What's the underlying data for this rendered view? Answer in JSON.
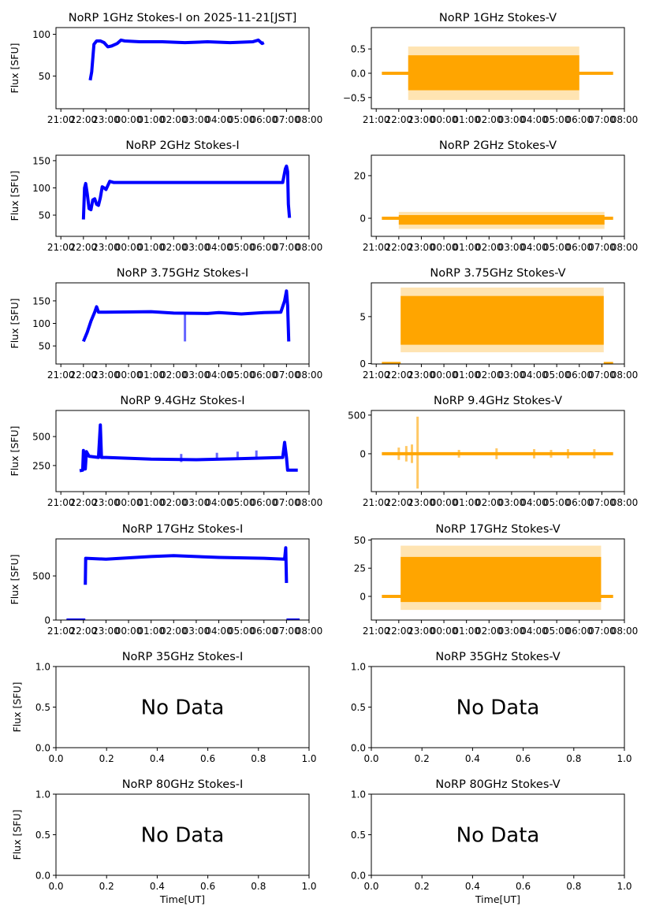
{
  "chart_data": [
    {
      "type": "scatter",
      "title": "NoRP 1GHz Stokes-I on 2025-11-21[JST]",
      "ylabel": "Flux [SFU]",
      "xlabel": "",
      "color": "#0000ff",
      "xlim": [
        "20:47",
        "08:00"
      ],
      "ylim": [
        11,
        108
      ],
      "xticks": [
        "21:00",
        "22:00",
        "23:00",
        "00:00",
        "01:00",
        "02:00",
        "03:00",
        "04:00",
        "05:00",
        "06:00",
        "07:00",
        "08:00"
      ],
      "yticks": [
        {
          "v": 50,
          "label": "50"
        },
        {
          "v": 100,
          "label": "100"
        }
      ],
      "lines": [
        [
          [
            "22:18",
            45
          ],
          [
            "22:22",
            55
          ],
          [
            "22:28",
            88
          ],
          [
            "22:35",
            92
          ],
          [
            "22:45",
            92
          ],
          [
            "22:55",
            90
          ],
          [
            "23:05",
            85
          ],
          [
            "23:15",
            86
          ],
          [
            "23:30",
            89
          ],
          [
            "23:40",
            93
          ],
          [
            "23:50",
            92
          ],
          [
            "00:30",
            91
          ],
          [
            "01:30",
            91
          ],
          [
            "02:30",
            90
          ],
          [
            "03:30",
            91
          ],
          [
            "04:30",
            90
          ],
          [
            "05:30",
            91
          ],
          [
            "05:45",
            93
          ],
          [
            "05:55",
            89
          ],
          [
            "06:00",
            90
          ]
        ]
      ],
      "bands": [],
      "spikes": []
    },
    {
      "type": "scatter",
      "title": "NoRP 1GHz Stokes-V",
      "ylabel": "",
      "xlabel": "",
      "color": "#ffa500",
      "xlim": [
        "20:47",
        "08:00"
      ],
      "ylim": [
        -0.73,
        0.94
      ],
      "xticks": [
        "21:00",
        "22:00",
        "23:00",
        "00:00",
        "01:00",
        "02:00",
        "03:00",
        "04:00",
        "05:00",
        "06:00",
        "07:00",
        "08:00"
      ],
      "yticks": [
        {
          "v": -0.5,
          "label": "−0.5"
        },
        {
          "v": 0,
          "label": "0.0"
        },
        {
          "v": 0.5,
          "label": "0.5"
        }
      ],
      "lines": [
        [
          [
            "21:15",
            0
          ],
          [
            "07:30",
            0
          ]
        ]
      ],
      "bands": [
        {
          "start": "22:25",
          "end": "06:00",
          "core": [
            -0.35,
            0.37
          ],
          "outer": [
            -0.55,
            0.55
          ]
        }
      ],
      "spikes": []
    },
    {
      "type": "scatter",
      "title": "NoRP 2GHz Stokes-I",
      "ylabel": "Flux [SFU]",
      "xlabel": "",
      "color": "#0000ff",
      "xlim": [
        "20:47",
        "08:00"
      ],
      "ylim": [
        11,
        160
      ],
      "xticks": [
        "21:00",
        "22:00",
        "23:00",
        "00:00",
        "01:00",
        "02:00",
        "03:00",
        "04:00",
        "05:00",
        "06:00",
        "07:00",
        "08:00"
      ],
      "yticks": [
        {
          "v": 50,
          "label": "50"
        },
        {
          "v": 100,
          "label": "100"
        },
        {
          "v": 150,
          "label": "150"
        }
      ],
      "lines": [
        [
          [
            "22:00",
            42
          ],
          [
            "22:03",
            100
          ],
          [
            "22:06",
            108
          ],
          [
            "22:10",
            90
          ],
          [
            "22:15",
            62
          ],
          [
            "22:20",
            60
          ],
          [
            "22:25",
            78
          ],
          [
            "22:30",
            80
          ],
          [
            "22:35",
            70
          ],
          [
            "22:40",
            68
          ],
          [
            "22:45",
            82
          ],
          [
            "22:50",
            102
          ],
          [
            "22:55",
            100
          ],
          [
            "23:00",
            97
          ],
          [
            "23:10",
            112
          ],
          [
            "23:20",
            110
          ],
          [
            "01:00",
            110
          ],
          [
            "03:00",
            110
          ],
          [
            "05:00",
            110
          ],
          [
            "06:50",
            110
          ],
          [
            "06:57",
            135
          ],
          [
            "07:00",
            140
          ],
          [
            "07:03",
            130
          ],
          [
            "07:05",
            70
          ],
          [
            "07:08",
            45
          ]
        ]
      ],
      "bands": [],
      "spikes": []
    },
    {
      "type": "scatter",
      "title": "NoRP 2GHz Stokes-V",
      "ylabel": "",
      "xlabel": "",
      "color": "#ffa500",
      "xlim": [
        "20:47",
        "08:00"
      ],
      "ylim": [
        -8.5,
        29.6
      ],
      "xticks": [
        "21:00",
        "22:00",
        "23:00",
        "00:00",
        "01:00",
        "02:00",
        "03:00",
        "04:00",
        "05:00",
        "06:00",
        "07:00",
        "08:00"
      ],
      "yticks": [
        {
          "v": 0,
          "label": "0"
        },
        {
          "v": 20,
          "label": "20"
        }
      ],
      "lines": [
        [
          [
            "21:15",
            0
          ],
          [
            "07:30",
            0
          ]
        ]
      ],
      "bands": [
        {
          "start": "22:00",
          "end": "07:07",
          "core": [
            -3,
            1.5
          ],
          "outer": [
            -5,
            3
          ]
        }
      ],
      "spikes": []
    },
    {
      "type": "scatter",
      "title": "NoRP 3.75GHz Stokes-I",
      "ylabel": "Flux [SFU]",
      "xlabel": "",
      "color": "#0000ff",
      "xlim": [
        "20:47",
        "08:00"
      ],
      "ylim": [
        10,
        190
      ],
      "xticks": [
        "21:00",
        "22:00",
        "23:00",
        "00:00",
        "01:00",
        "02:00",
        "03:00",
        "04:00",
        "05:00",
        "06:00",
        "07:00",
        "08:00"
      ],
      "yticks": [
        {
          "v": 50,
          "label": "50"
        },
        {
          "v": 100,
          "label": "100"
        },
        {
          "v": 150,
          "label": "150"
        }
      ],
      "lines": [
        [
          [
            "22:00",
            60
          ],
          [
            "22:10",
            80
          ],
          [
            "22:20",
            105
          ],
          [
            "22:30",
            125
          ],
          [
            "22:35",
            137
          ],
          [
            "22:40",
            125
          ],
          [
            "23:00",
            125
          ],
          [
            "01:00",
            126
          ],
          [
            "02:00",
            123
          ],
          [
            "03:30",
            122
          ],
          [
            "04:00",
            124
          ],
          [
            "05:00",
            121
          ],
          [
            "06:00",
            124
          ],
          [
            "06:45",
            125
          ],
          [
            "06:55",
            150
          ],
          [
            "07:00",
            172
          ],
          [
            "07:03",
            140
          ],
          [
            "07:06",
            60
          ]
        ]
      ],
      "bands": [],
      "spikes": [
        {
          "t": "02:30",
          "lo": 60,
          "hi": 124
        }
      ]
    },
    {
      "type": "scatter",
      "title": "NoRP 3.75GHz Stokes-V",
      "ylabel": "",
      "xlabel": "",
      "color": "#ffa500",
      "xlim": [
        "20:47",
        "08:00"
      ],
      "ylim": [
        -0.05,
        8.6
      ],
      "xticks": [
        "21:00",
        "22:00",
        "23:00",
        "00:00",
        "01:00",
        "02:00",
        "03:00",
        "04:00",
        "05:00",
        "06:00",
        "07:00",
        "08:00"
      ],
      "yticks": [
        {
          "v": 0,
          "label": "0"
        },
        {
          "v": 5,
          "label": "5"
        }
      ],
      "lines": [
        [
          [
            "21:15",
            0
          ],
          [
            "22:05",
            0
          ]
        ],
        [
          [
            "07:05",
            0
          ],
          [
            "07:30",
            0
          ]
        ]
      ],
      "bands": [
        {
          "start": "22:05",
          "end": "07:05",
          "core": [
            2,
            7.2
          ],
          "outer": [
            1.2,
            8.1
          ]
        }
      ],
      "spikes": []
    },
    {
      "type": "scatter",
      "title": "NoRP 9.4GHz Stokes-I",
      "ylabel": "Flux [SFU]",
      "xlabel": "",
      "color": "#0000ff",
      "xlim": [
        "20:47",
        "08:00"
      ],
      "ylim": [
        25,
        725
      ],
      "xticks": [
        "21:00",
        "22:00",
        "23:00",
        "00:00",
        "01:00",
        "02:00",
        "03:00",
        "04:00",
        "05:00",
        "06:00",
        "07:00",
        "08:00"
      ],
      "yticks": [
        {
          "v": 250,
          "label": "250"
        },
        {
          "v": 500,
          "label": "500"
        }
      ],
      "lines": [
        [
          [
            "21:50",
            205
          ],
          [
            "21:58",
            210
          ],
          [
            "22:00",
            380
          ],
          [
            "22:05",
            220
          ],
          [
            "22:08",
            370
          ],
          [
            "22:15",
            330
          ],
          [
            "22:40",
            320
          ],
          [
            "22:45",
            600
          ],
          [
            "22:48",
            320
          ],
          [
            "23:00",
            320
          ],
          [
            "01:00",
            305
          ],
          [
            "03:00",
            300
          ],
          [
            "05:00",
            310
          ],
          [
            "06:50",
            320
          ],
          [
            "06:55",
            450
          ],
          [
            "07:00",
            320
          ],
          [
            "07:03",
            210
          ],
          [
            "07:30",
            210
          ]
        ]
      ],
      "bands": [],
      "spikes": [
        {
          "t": "02:20",
          "lo": 280,
          "hi": 350
        },
        {
          "t": "03:55",
          "lo": 300,
          "hi": 360
        },
        {
          "t": "04:50",
          "lo": 300,
          "hi": 370
        },
        {
          "t": "05:40",
          "lo": 300,
          "hi": 380
        }
      ]
    },
    {
      "type": "scatter",
      "title": "NoRP 9.4GHz Stokes-V",
      "ylabel": "",
      "xlabel": "",
      "color": "#ffa500",
      "xlim": [
        "20:47",
        "08:00"
      ],
      "ylim": [
        -490,
        560
      ],
      "xticks": [
        "21:00",
        "22:00",
        "23:00",
        "00:00",
        "01:00",
        "02:00",
        "03:00",
        "04:00",
        "05:00",
        "06:00",
        "07:00",
        "08:00"
      ],
      "yticks": [
        {
          "v": 0,
          "label": "0"
        },
        {
          "v": 500,
          "label": "500"
        }
      ],
      "lines": [
        [
          [
            "21:15",
            0
          ],
          [
            "07:30",
            0
          ]
        ]
      ],
      "bands": [],
      "spikes": [
        {
          "t": "22:00",
          "lo": -80,
          "hi": 80
        },
        {
          "t": "22:20",
          "lo": -100,
          "hi": 100
        },
        {
          "t": "22:35",
          "lo": -120,
          "hi": 120
        },
        {
          "t": "22:50",
          "lo": -450,
          "hi": 480
        },
        {
          "t": "00:40",
          "lo": -50,
          "hi": 50
        },
        {
          "t": "02:20",
          "lo": -70,
          "hi": 70
        },
        {
          "t": "04:00",
          "lo": -60,
          "hi": 60
        },
        {
          "t": "04:45",
          "lo": -50,
          "hi": 50
        },
        {
          "t": "05:30",
          "lo": -60,
          "hi": 60
        },
        {
          "t": "06:40",
          "lo": -60,
          "hi": 60
        }
      ]
    },
    {
      "type": "scatter",
      "title": "NoRP 17GHz Stokes-I",
      "ylabel": "Flux [SFU]",
      "xlabel": "",
      "color": "#0000ff",
      "xlim": [
        "20:47",
        "08:00"
      ],
      "ylim": [
        0,
        920
      ],
      "xticks": [
        "21:00",
        "22:00",
        "23:00",
        "00:00",
        "01:00",
        "02:00",
        "03:00",
        "04:00",
        "05:00",
        "06:00",
        "07:00",
        "08:00"
      ],
      "yticks": [
        {
          "v": 0,
          "label": "0"
        },
        {
          "v": 500,
          "label": "500"
        }
      ],
      "lines": [
        [
          [
            "22:05",
            400
          ],
          [
            "22:06",
            700
          ],
          [
            "23:00",
            690
          ],
          [
            "01:00",
            720
          ],
          [
            "02:00",
            730
          ],
          [
            "04:00",
            710
          ],
          [
            "06:00",
            700
          ],
          [
            "06:55",
            690
          ],
          [
            "06:58",
            820
          ],
          [
            "07:00",
            420
          ]
        ],
        [
          [
            "21:15",
            0
          ],
          [
            "22:05",
            0
          ]
        ],
        [
          [
            "07:00",
            0
          ],
          [
            "07:35",
            0
          ]
        ]
      ],
      "bands": [],
      "spikes": []
    },
    {
      "type": "scatter",
      "title": "NoRP 17GHz Stokes-V",
      "ylabel": "",
      "xlabel": "",
      "color": "#ffa500",
      "xlim": [
        "20:47",
        "08:00"
      ],
      "ylim": [
        -21,
        51
      ],
      "xticks": [
        "21:00",
        "22:00",
        "23:00",
        "00:00",
        "01:00",
        "02:00",
        "03:00",
        "04:00",
        "05:00",
        "06:00",
        "07:00",
        "08:00"
      ],
      "yticks": [
        {
          "v": 0,
          "label": "0"
        },
        {
          "v": 25,
          "label": "25"
        },
        {
          "v": 50,
          "label": "50"
        }
      ],
      "lines": [
        [
          [
            "21:15",
            0
          ],
          [
            "07:30",
            0
          ]
        ]
      ],
      "bands": [
        {
          "start": "22:05",
          "end": "06:58",
          "core": [
            -5,
            35
          ],
          "outer": [
            -12,
            45
          ]
        }
      ],
      "spikes": []
    },
    {
      "type": "scatter",
      "title": "NoRP 35GHz Stokes-I",
      "ylabel": "Flux [SFU]",
      "xlabel": "",
      "no_data": "No Data",
      "xticks": [
        "0.0",
        "0.2",
        "0.4",
        "0.6",
        "0.8",
        "1.0"
      ],
      "yticks": [
        {
          "v": 0,
          "label": "0.0"
        },
        {
          "v": 0.5,
          "label": "0.5"
        },
        {
          "v": 1,
          "label": "1.0"
        }
      ],
      "xlim": [
        0,
        1
      ],
      "ylim": [
        0,
        1
      ]
    },
    {
      "type": "scatter",
      "title": "NoRP 35GHz Stokes-V",
      "ylabel": "",
      "xlabel": "",
      "no_data": "No Data",
      "xticks": [
        "0.0",
        "0.2",
        "0.4",
        "0.6",
        "0.8",
        "1.0"
      ],
      "yticks": [
        {
          "v": 0,
          "label": "0.0"
        },
        {
          "v": 0.5,
          "label": "0.5"
        },
        {
          "v": 1,
          "label": "1.0"
        }
      ],
      "xlim": [
        0,
        1
      ],
      "ylim": [
        0,
        1
      ]
    },
    {
      "type": "scatter",
      "title": "NoRP 80GHz Stokes-I",
      "ylabel": "Flux [SFU]",
      "xlabel": "Time[UT]",
      "no_data": "No Data",
      "xticks": [
        "0.0",
        "0.2",
        "0.4",
        "0.6",
        "0.8",
        "1.0"
      ],
      "yticks": [
        {
          "v": 0,
          "label": "0.0"
        },
        {
          "v": 0.5,
          "label": "0.5"
        },
        {
          "v": 1,
          "label": "1.0"
        }
      ],
      "xlim": [
        0,
        1
      ],
      "ylim": [
        0,
        1
      ]
    },
    {
      "type": "scatter",
      "title": "NoRP 80GHz Stokes-V",
      "ylabel": "",
      "xlabel": "Time[UT]",
      "no_data": "No Data",
      "xticks": [
        "0.0",
        "0.2",
        "0.4",
        "0.6",
        "0.8",
        "1.0"
      ],
      "yticks": [
        {
          "v": 0,
          "label": "0.0"
        },
        {
          "v": 0.5,
          "label": "0.5"
        },
        {
          "v": 1,
          "label": "1.0"
        }
      ],
      "xlim": [
        0,
        1
      ],
      "ylim": [
        0,
        1
      ]
    }
  ]
}
